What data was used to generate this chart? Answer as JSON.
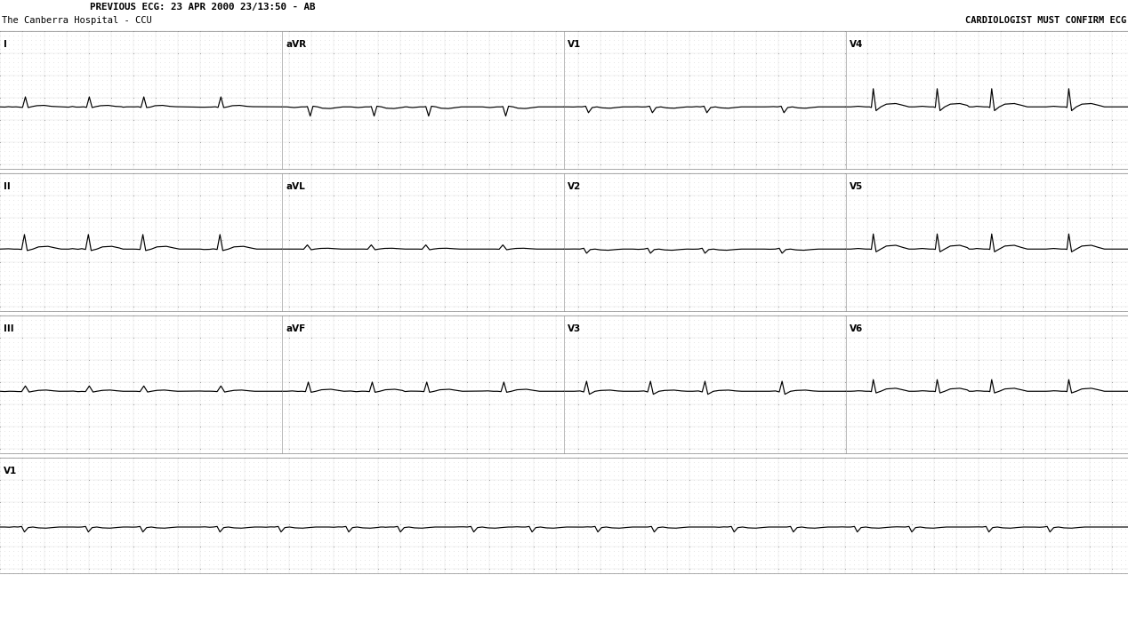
{
  "title_left": "PREVIOUS ECG: 23 APR 2000 23/13:50 - AB",
  "title_left2": "The Canberra Hospital - CCU",
  "title_right": "CARDIOLOGIST MUST CONFIRM ECG",
  "bg_color": "#ffffff",
  "grid_dot_color": "#aaaaaa",
  "grid_major_color": "#888888",
  "ecg_color": "#000000",
  "fig_width": 12.68,
  "fig_height": 7.1,
  "dpi": 100,
  "lead_layout": [
    [
      "I",
      "aVR",
      "V1",
      "V4"
    ],
    [
      "II",
      "aVL",
      "V2",
      "V5"
    ],
    [
      "III",
      "aVF",
      "V3",
      "V6"
    ]
  ],
  "rhythm_label": "V1"
}
